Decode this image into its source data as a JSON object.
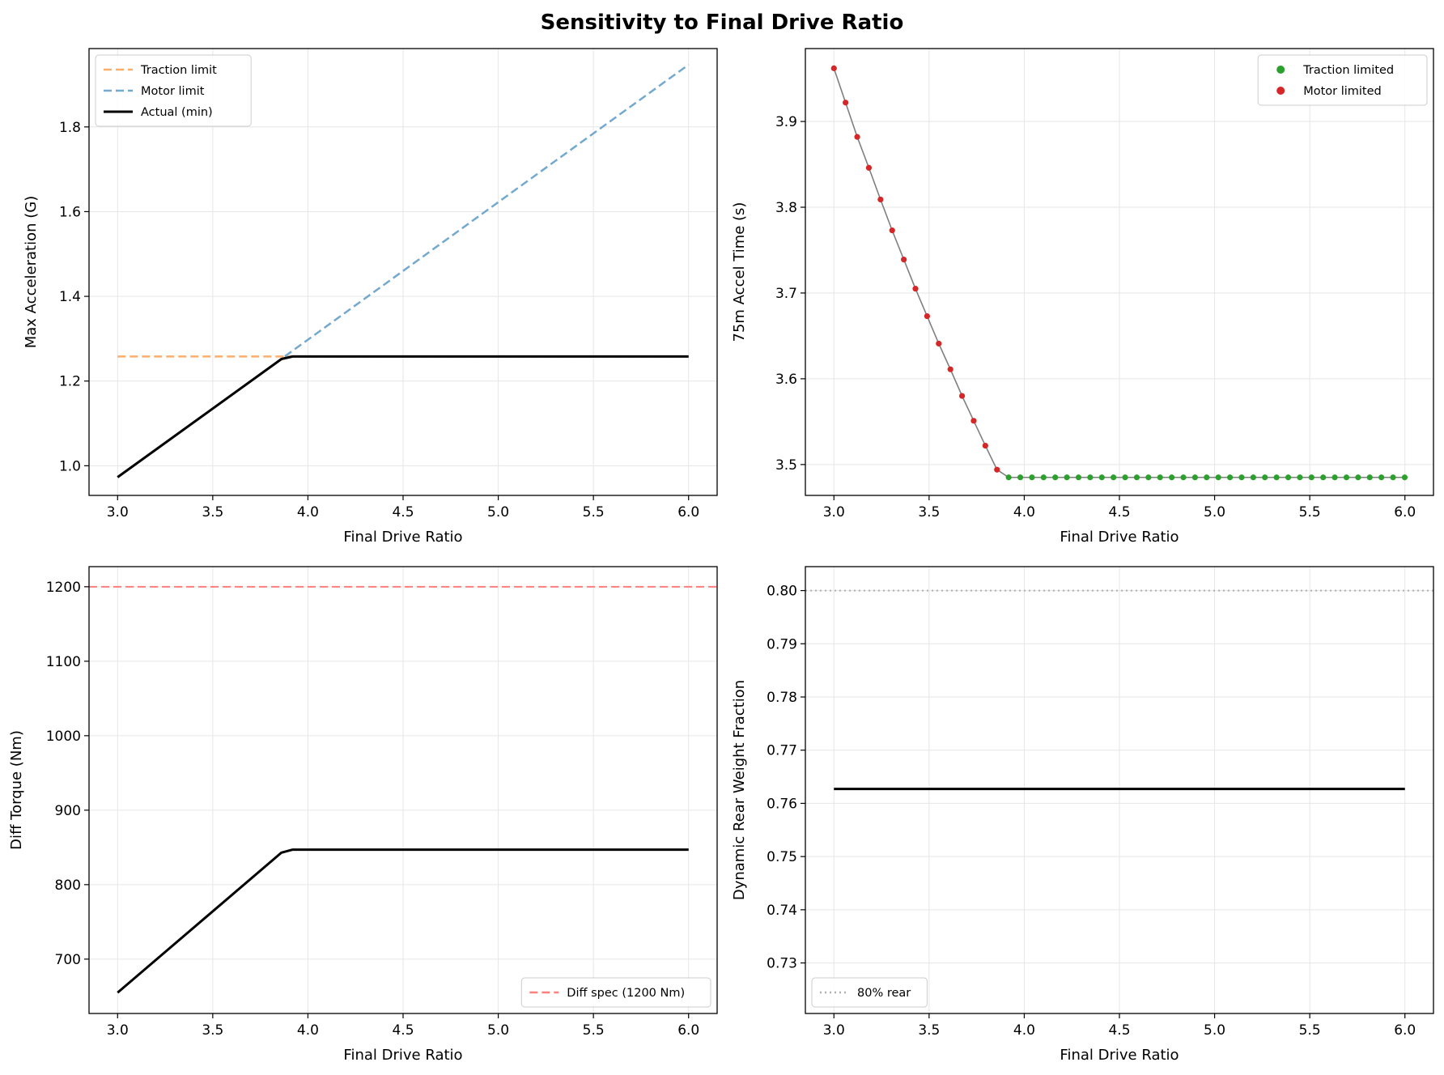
{
  "figure": {
    "title": "Sensitivity to Final Drive Ratio"
  },
  "colors": {
    "traction_orange": "#fdae6b",
    "motor_blue": "#74a9cf",
    "actual_black": "#000000",
    "traction_green": "#2ca02c",
    "motor_red": "#d62728",
    "connector_gray": "#7f7f7f",
    "diff_spec_red": "#ff7f7f",
    "ref_gray": "#b0b0b0",
    "grid": "#e6e6e6"
  },
  "chart_data": [
    {
      "id": "accel",
      "type": "line",
      "xlabel": "Final Drive Ratio",
      "ylabel": "Max Acceleration (G)",
      "xlim": [
        2.85,
        6.15
      ],
      "ylim": [
        0.93,
        1.985
      ],
      "xticks": [
        3.0,
        3.5,
        4.0,
        4.5,
        5.0,
        5.5,
        6.0
      ],
      "xtick_labels": [
        "3.0",
        "3.5",
        "4.0",
        "4.5",
        "5.0",
        "5.5",
        "6.0"
      ],
      "yticks": [
        1.0,
        1.2,
        1.4,
        1.6,
        1.8
      ],
      "ytick_labels": [
        "1.0",
        "1.2",
        "1.4",
        "1.6",
        "1.8"
      ],
      "grid": true,
      "legend_loc": "upper-left",
      "series": [
        {
          "name": "Traction limit",
          "style": "dashed",
          "color": "#fdae6b",
          "x": [
            3.0,
            6.0
          ],
          "y": [
            1.258,
            1.258
          ]
        },
        {
          "name": "Motor limit",
          "style": "dashed",
          "color": "#74a9cf",
          "x": [
            3.0,
            6.0
          ],
          "y": [
            0.973,
            1.947
          ]
        },
        {
          "name": "Actual (min)",
          "style": "solid",
          "color": "#000000",
          "x": [
            3.0,
            3.861,
            3.92,
            6.0
          ],
          "y": [
            0.973,
            1.252,
            1.258,
            1.258
          ]
        }
      ]
    },
    {
      "id": "accel_time",
      "type": "scatter",
      "xlabel": "Final Drive Ratio",
      "ylabel": "75m Accel Time (s)",
      "xlim": [
        2.85,
        6.15
      ],
      "ylim": [
        3.464,
        3.985
      ],
      "xticks": [
        3.0,
        3.5,
        4.0,
        4.5,
        5.0,
        5.5,
        6.0
      ],
      "xtick_labels": [
        "3.0",
        "3.5",
        "4.0",
        "4.5",
        "5.0",
        "5.5",
        "6.0"
      ],
      "yticks": [
        3.5,
        3.6,
        3.7,
        3.8,
        3.9
      ],
      "ytick_labels": [
        "3.5",
        "3.6",
        "3.7",
        "3.8",
        "3.9"
      ],
      "grid": true,
      "legend_loc": "upper-right",
      "x_start": 3.0,
      "x_step": 0.0612,
      "series": [
        {
          "name": "Motor limited",
          "color": "#d62728",
          "y": [
            3.962,
            3.922,
            3.882,
            3.846,
            3.809,
            3.773,
            3.739,
            3.705,
            3.673,
            3.641,
            3.611,
            3.58,
            3.551,
            3.522,
            3.494
          ]
        },
        {
          "name": "Traction limited",
          "color": "#2ca02c",
          "y": [
            3.485,
            3.485,
            3.485,
            3.485,
            3.485,
            3.485,
            3.485,
            3.485,
            3.485,
            3.485,
            3.485,
            3.485,
            3.485,
            3.485,
            3.485,
            3.485,
            3.485,
            3.485,
            3.485,
            3.485,
            3.485,
            3.485,
            3.485,
            3.485,
            3.485,
            3.485,
            3.485,
            3.485,
            3.485,
            3.485,
            3.485,
            3.485,
            3.485,
            3.485,
            3.485
          ]
        }
      ],
      "legend_order": [
        "Traction limited",
        "Motor limited"
      ]
    },
    {
      "id": "diff_torque",
      "type": "line",
      "xlabel": "Final Drive Ratio",
      "ylabel": "Diff Torque (Nm)",
      "xlim": [
        2.85,
        6.15
      ],
      "ylim": [
        627,
        1227
      ],
      "xticks": [
        3.0,
        3.5,
        4.0,
        4.5,
        5.0,
        5.5,
        6.0
      ],
      "xtick_labels": [
        "3.0",
        "3.5",
        "4.0",
        "4.5",
        "5.0",
        "5.5",
        "6.0"
      ],
      "yticks": [
        700,
        800,
        900,
        1000,
        1100,
        1200
      ],
      "ytick_labels": [
        "700",
        "800",
        "900",
        "1000",
        "1100",
        "1200"
      ],
      "grid": true,
      "legend_loc": "lower-right",
      "series": [
        {
          "name": "",
          "style": "solid",
          "color": "#000000",
          "x": [
            3.0,
            3.861,
            3.92,
            6.0
          ],
          "y": [
            655,
            843,
            847,
            847
          ]
        }
      ],
      "hlines": [
        {
          "name": "Diff spec (1200 Nm)",
          "y": 1200,
          "style": "dashed",
          "color": "#ff7f7f",
          "in_legend": true
        }
      ]
    },
    {
      "id": "rear_weight",
      "type": "line",
      "xlabel": "Final Drive Ratio",
      "ylabel": "Dynamic Rear Weight Fraction",
      "xlim": [
        2.85,
        6.15
      ],
      "ylim": [
        0.7205,
        0.8045
      ],
      "xticks": [
        3.0,
        3.5,
        4.0,
        4.5,
        5.0,
        5.5,
        6.0
      ],
      "xtick_labels": [
        "3.0",
        "3.5",
        "4.0",
        "4.5",
        "5.0",
        "5.5",
        "6.0"
      ],
      "yticks": [
        0.73,
        0.74,
        0.75,
        0.76,
        0.77,
        0.78,
        0.79,
        0.8
      ],
      "ytick_labels": [
        "0.73",
        "0.74",
        "0.75",
        "0.76",
        "0.77",
        "0.78",
        "0.79",
        "0.80"
      ],
      "grid": true,
      "legend_loc": "lower-left",
      "series": [
        {
          "name": "",
          "style": "solid",
          "color": "#000000",
          "x": [
            3.0,
            6.0
          ],
          "y": [
            0.7627,
            0.7627
          ]
        }
      ],
      "hlines": [
        {
          "name": "80% rear",
          "y": 0.8,
          "style": "dotted",
          "color": "#b0b0b0",
          "in_legend": true
        }
      ]
    }
  ]
}
